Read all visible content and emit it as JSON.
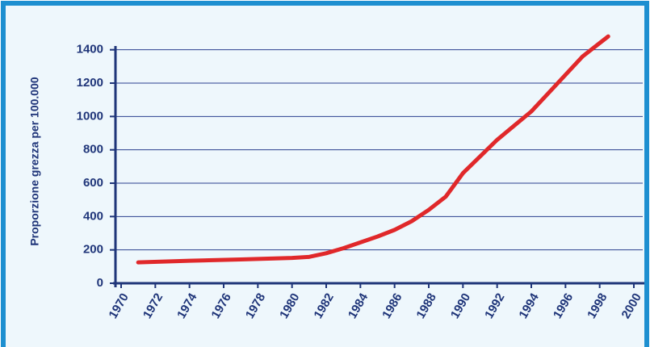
{
  "chart_data": {
    "type": "line",
    "y_label": "Proporzione grezza per 100.000",
    "x": [
      1971,
      1974,
      1977,
      1980,
      1981,
      1982,
      1983,
      1984,
      1985,
      1986,
      1987,
      1988,
      1989,
      1990,
      1991,
      1992,
      1993,
      1994,
      1995,
      1996,
      1997,
      1998,
      1998.5
    ],
    "series": [
      {
        "color": "#e0282a",
        "values": [
          125,
          135,
          143,
          152,
          158,
          180,
          210,
          245,
          280,
          320,
          372,
          440,
          520,
          660,
          760,
          860,
          945,
          1030,
          1140,
          1250,
          1360,
          1440,
          1480
        ]
      }
    ],
    "xlim": [
      1970,
      2000
    ],
    "xticks": [
      1970,
      1972,
      1974,
      1976,
      1978,
      1980,
      1982,
      1984,
      1986,
      1988,
      1990,
      1992,
      1994,
      1996,
      1998,
      2000
    ],
    "ylim": [
      0,
      1500
    ],
    "yticks": [
      0,
      200,
      400,
      600,
      800,
      1000,
      1200,
      1400
    ],
    "grid": true
  }
}
